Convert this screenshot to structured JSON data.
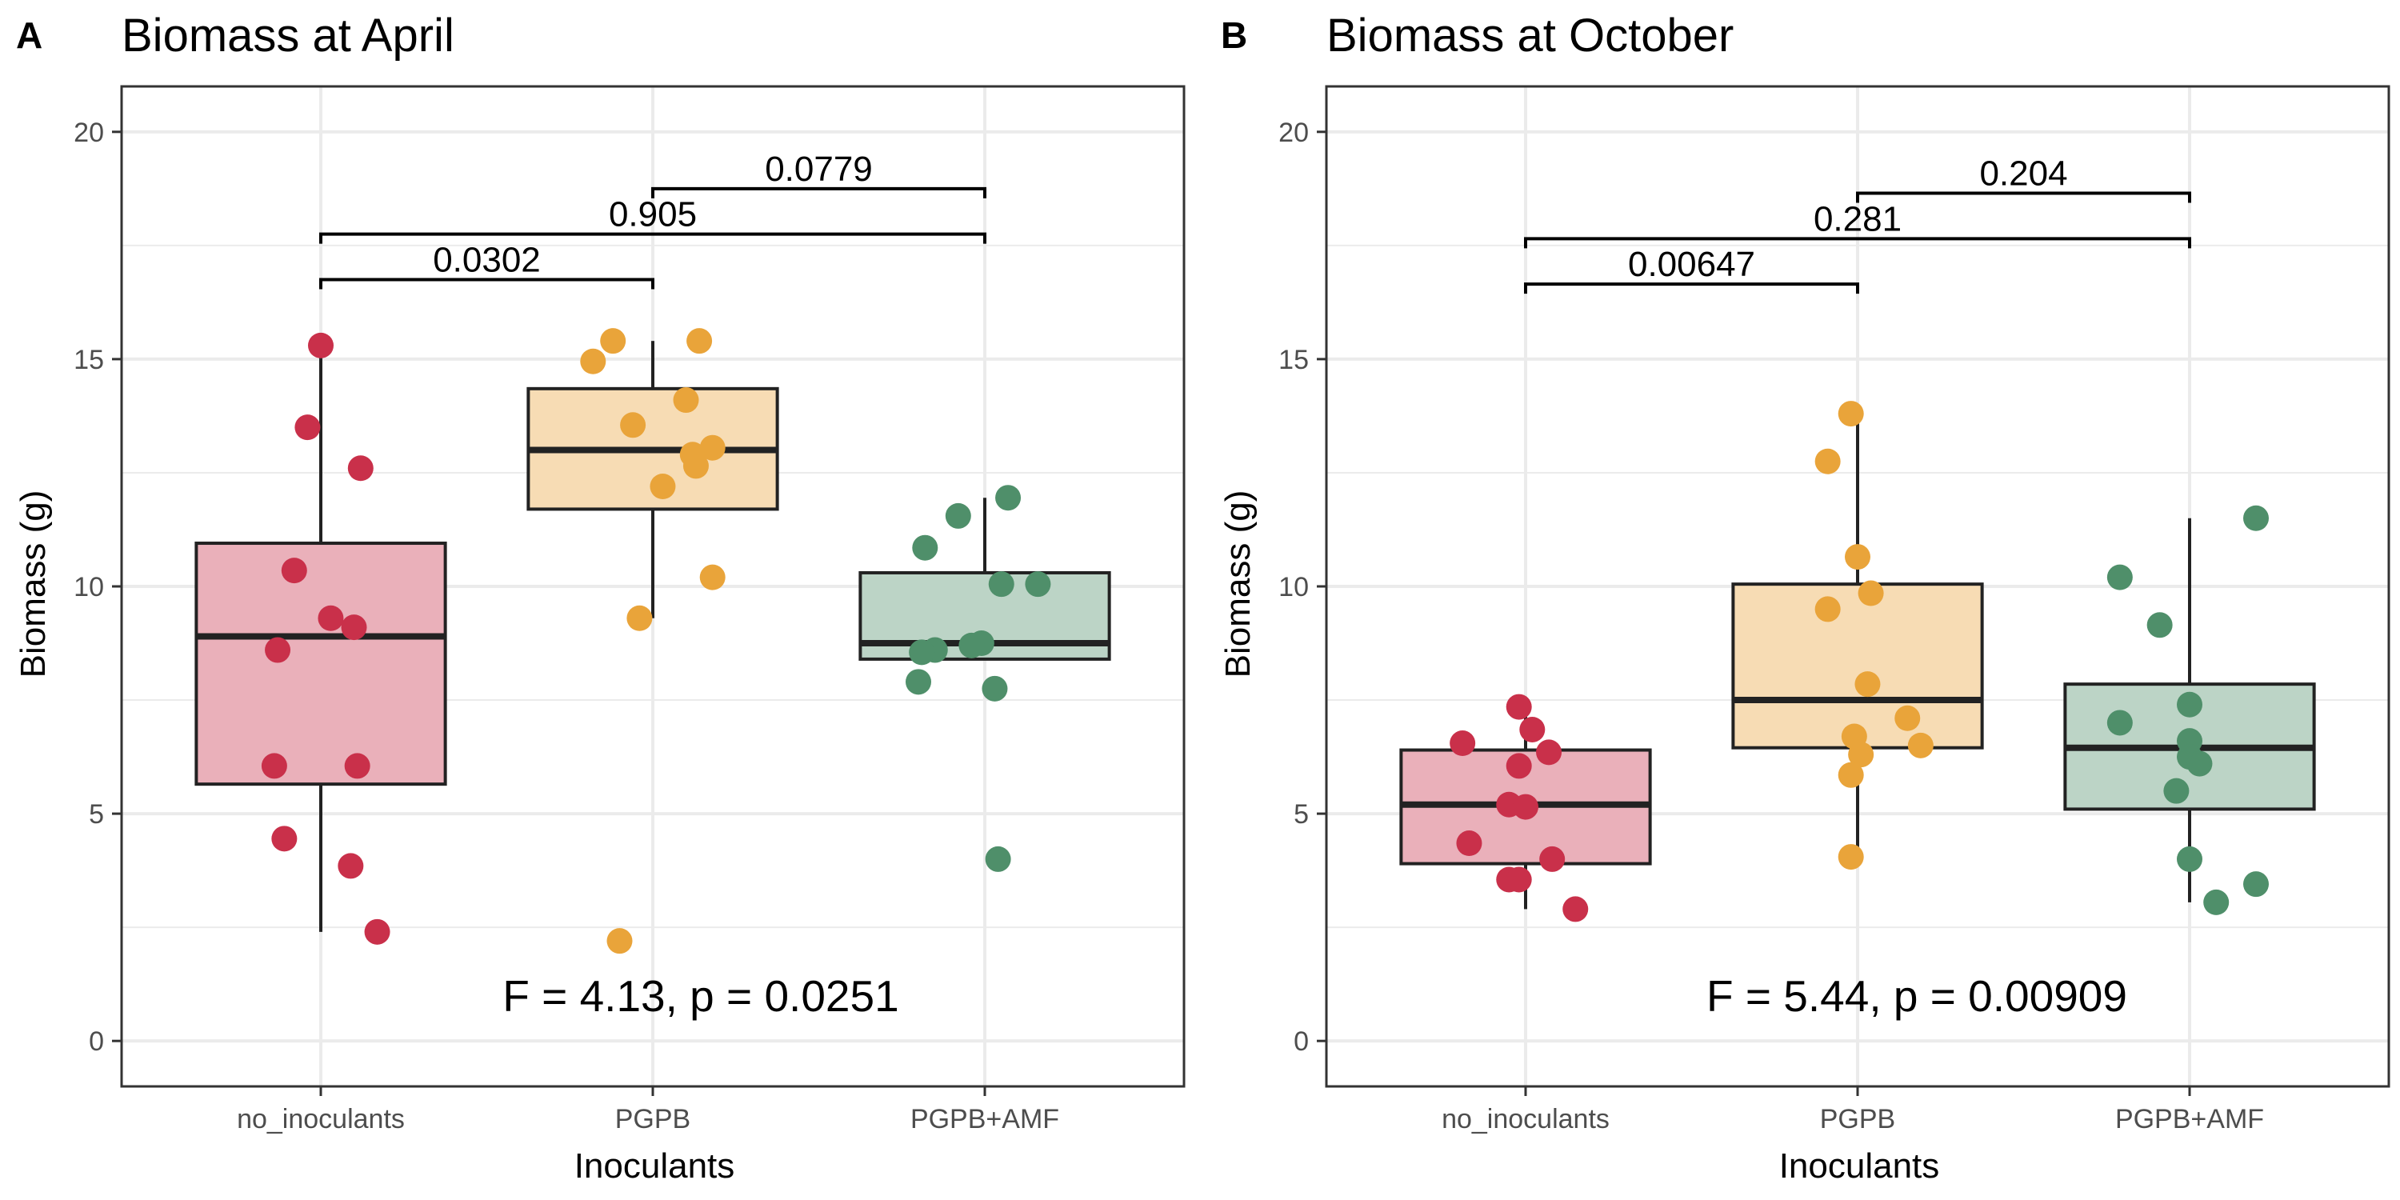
{
  "figure": {
    "colors": {
      "no_inoculants": "#c9304a",
      "PGPB": "#e9a43a",
      "PGPB+AMF": "#4f8f6a",
      "grid": "#ebebeb",
      "frame": "#333333"
    }
  },
  "chart_data": [
    {
      "type": "box",
      "letter": "A",
      "title": "Biomass at April",
      "xlabel": "Inoculants",
      "ylabel": "Biomass (g)",
      "ylim": [
        -1,
        21
      ],
      "yticks": [
        0,
        5,
        10,
        15,
        20
      ],
      "grid": true,
      "categories": [
        "no_inoculants",
        "PGPB",
        "PGPB+AMF"
      ],
      "boxes": [
        {
          "name": "no_inoculants",
          "q1": 5.65,
          "median": 8.9,
          "q3": 10.95,
          "whisker_low": 2.4,
          "whisker_high": 15.3
        },
        {
          "name": "PGPB",
          "q1": 11.7,
          "median": 13.0,
          "q3": 14.35,
          "whisker_low": 9.3,
          "whisker_high": 15.4
        },
        {
          "name": "PGPB+AMF",
          "q1": 8.4,
          "median": 8.75,
          "q3": 10.3,
          "whisker_low": 8.4,
          "whisker_high": 11.95
        }
      ],
      "points": [
        {
          "group": "no_inoculants",
          "values": [
            15.3,
            13.5,
            12.6,
            10.35,
            9.3,
            9.1,
            8.6,
            6.05,
            6.05,
            4.45,
            3.85,
            2.4
          ],
          "jitter": [
            0.0,
            -0.04,
            0.12,
            -0.08,
            0.03,
            0.1,
            -0.13,
            -0.14,
            0.11,
            -0.11,
            0.09,
            0.17
          ]
        },
        {
          "group": "PGPB",
          "values": [
            15.4,
            15.4,
            14.95,
            14.1,
            13.55,
            13.05,
            12.9,
            12.65,
            12.2,
            10.2,
            9.3,
            2.2
          ],
          "jitter": [
            -0.12,
            0.14,
            -0.18,
            0.1,
            -0.06,
            0.18,
            0.12,
            0.13,
            0.03,
            0.18,
            -0.04,
            -0.1
          ]
        },
        {
          "group": "PGPB+AMF",
          "values": [
            11.95,
            11.55,
            10.85,
            10.05,
            10.05,
            8.75,
            8.7,
            8.6,
            8.55,
            7.9,
            7.75,
            4.0
          ],
          "jitter": [
            0.07,
            -0.08,
            -0.18,
            0.05,
            0.16,
            -0.01,
            -0.04,
            -0.15,
            -0.19,
            -0.2,
            0.03,
            0.04
          ]
        }
      ],
      "comparisons": [
        {
          "from": "no_inoculants",
          "to": "PGPB",
          "y": 16.75,
          "label": "0.0302"
        },
        {
          "from": "no_inoculants",
          "to": "PGPB+AMF",
          "y": 17.75,
          "label": "0.905"
        },
        {
          "from": "PGPB",
          "to": "PGPB+AMF",
          "y": 18.75,
          "label": "0.0779"
        }
      ],
      "annotation": "F = 4.13, p = 0.0251"
    },
    {
      "type": "box",
      "letter": "B",
      "title": "Biomass at October",
      "xlabel": "Inoculants",
      "ylabel": "Biomass (g)",
      "ylim": [
        -1,
        21
      ],
      "yticks": [
        0,
        5,
        10,
        15,
        20
      ],
      "grid": true,
      "categories": [
        "no_inoculants",
        "PGPB",
        "PGPB+AMF"
      ],
      "boxes": [
        {
          "name": "no_inoculants",
          "q1": 3.9,
          "median": 5.2,
          "q3": 6.4,
          "whisker_low": 2.9,
          "whisker_high": 7.35
        },
        {
          "name": "PGPB",
          "q1": 6.45,
          "median": 7.5,
          "q3": 10.05,
          "whisker_low": 4.05,
          "whisker_high": 13.8
        },
        {
          "name": "PGPB+AMF",
          "q1": 5.1,
          "median": 6.45,
          "q3": 7.85,
          "whisker_low": 3.05,
          "whisker_high": 11.5
        }
      ],
      "points": [
        {
          "group": "no_inoculants",
          "values": [
            7.35,
            6.85,
            6.55,
            6.35,
            6.05,
            5.2,
            5.15,
            4.35,
            4.0,
            3.55,
            3.55,
            2.9
          ],
          "jitter": [
            -0.02,
            0.02,
            -0.19,
            0.07,
            -0.02,
            -0.05,
            0.0,
            -0.17,
            0.08,
            -0.05,
            -0.02,
            0.15
          ]
        },
        {
          "group": "PGPB",
          "values": [
            13.8,
            12.75,
            10.65,
            9.85,
            9.5,
            7.85,
            7.1,
            6.7,
            6.5,
            6.3,
            5.85,
            4.05
          ],
          "jitter": [
            -0.02,
            -0.09,
            0.0,
            0.04,
            -0.09,
            0.03,
            0.15,
            -0.01,
            0.19,
            0.01,
            -0.02,
            -0.02
          ]
        },
        {
          "group": "PGPB+AMF",
          "values": [
            11.5,
            10.2,
            9.15,
            7.4,
            7.0,
            6.6,
            6.25,
            6.1,
            5.5,
            4.0,
            3.45,
            3.05
          ],
          "jitter": [
            0.2,
            -0.21,
            -0.09,
            0.0,
            -0.21,
            0.0,
            0.0,
            0.03,
            -0.04,
            0.0,
            0.2,
            0.08
          ]
        }
      ],
      "comparisons": [
        {
          "from": "no_inoculants",
          "to": "PGPB",
          "y": 16.65,
          "label": "0.00647"
        },
        {
          "from": "no_inoculants",
          "to": "PGPB+AMF",
          "y": 17.65,
          "label": "0.281"
        },
        {
          "from": "PGPB",
          "to": "PGPB+AMF",
          "y": 18.65,
          "label": "0.204"
        }
      ],
      "annotation": "F = 5.44, p = 0.00909"
    }
  ]
}
